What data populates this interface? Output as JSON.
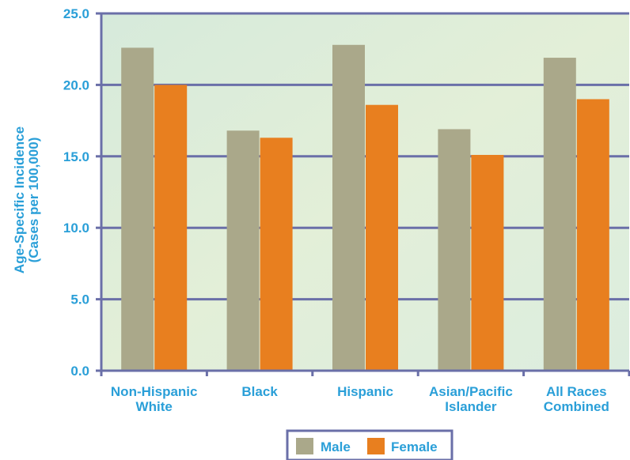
{
  "chart_data": {
    "type": "bar",
    "ylabel": [
      "Age-Specific Incidence",
      "(Cases per 100,000)"
    ],
    "xlabel": "",
    "ylim": [
      0,
      25
    ],
    "yticks": [
      "0.0",
      "5.0",
      "10.0",
      "15.0",
      "20.0",
      "25.0"
    ],
    "categories": [
      [
        "Non-Hispanic",
        "White"
      ],
      [
        "Black"
      ],
      [
        "Hispanic"
      ],
      [
        "Asian/Pacific",
        "Islander"
      ],
      [
        "All Races",
        "Combined"
      ]
    ],
    "series": [
      {
        "name": "Male",
        "values": [
          22.6,
          16.8,
          22.8,
          16.9,
          21.9
        ]
      },
      {
        "name": "Female",
        "values": [
          20.0,
          16.3,
          18.6,
          15.1,
          19.0
        ]
      }
    ],
    "grid": true,
    "legend_position": "bottom-center"
  },
  "colors": {
    "male": "#aaa88a",
    "female": "#e87f1f",
    "text": "#2a9fd8",
    "frame": "#6a6fa8",
    "plot_bg_start": "#d7ebd9",
    "plot_bg_end": "#e7f1d8"
  }
}
